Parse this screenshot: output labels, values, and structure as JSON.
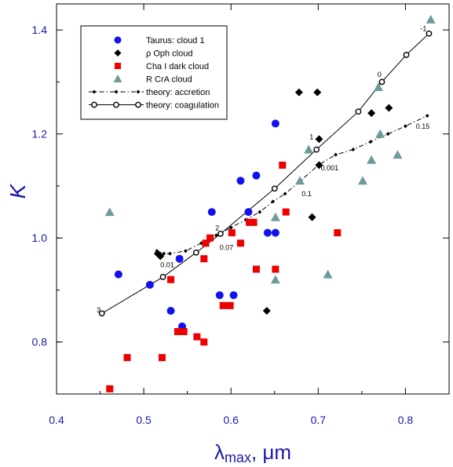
{
  "chart_data": {
    "type": "scatter",
    "title": "",
    "xlabel": "λmax, μm",
    "xlabel_main": "λ",
    "xlabel_sub": "max",
    "xlabel_unit": ", μm",
    "ylabel": "K",
    "xlim": [
      0.4,
      0.85
    ],
    "ylim": [
      0.7,
      1.45
    ],
    "xticks": [
      "0.4",
      "0.5",
      "0.6",
      "0.7",
      "0.8"
    ],
    "yticks": [
      "0.8",
      "1.0",
      "1.2",
      "1.4"
    ],
    "grid": false,
    "legend_position": "top-left",
    "series": [
      {
        "name": "Taurus: cloud 1",
        "marker": "circle",
        "color": "#1212ee",
        "points": [
          [
            0.471,
            0.93
          ],
          [
            0.507,
            0.91
          ],
          [
            0.531,
            0.86
          ],
          [
            0.541,
            0.96
          ],
          [
            0.544,
            0.83
          ],
          [
            0.578,
            1.05
          ],
          [
            0.587,
            0.89
          ],
          [
            0.603,
            0.89
          ],
          [
            0.611,
            1.11
          ],
          [
            0.62,
            1.05
          ],
          [
            0.629,
            1.12
          ],
          [
            0.642,
            1.01
          ],
          [
            0.651,
            1.01
          ],
          [
            0.651,
            1.22
          ]
        ]
      },
      {
        "name": "ρ Oph cloud",
        "marker": "diamond",
        "color": "#000000",
        "points": [
          [
            0.516,
            0.97
          ],
          [
            0.519,
            0.965
          ],
          [
            0.641,
            0.86
          ],
          [
            0.678,
            1.28
          ],
          [
            0.693,
            1.04
          ],
          [
            0.699,
            1.28
          ],
          [
            0.701,
            1.14
          ],
          [
            0.701,
            1.19
          ],
          [
            0.761,
            1.24
          ],
          [
            0.781,
            1.25
          ]
        ]
      },
      {
        "name": "Cha I dark cloud",
        "marker": "square",
        "color": "#ee0000",
        "points": [
          [
            0.461,
            0.71
          ],
          [
            0.481,
            0.77
          ],
          [
            0.521,
            0.77
          ],
          [
            0.531,
            0.92
          ],
          [
            0.539,
            0.82
          ],
          [
            0.546,
            0.82
          ],
          [
            0.561,
            0.81
          ],
          [
            0.569,
            0.8
          ],
          [
            0.569,
            0.96
          ],
          [
            0.571,
            0.99
          ],
          [
            0.576,
            1.0
          ],
          [
            0.591,
            0.87
          ],
          [
            0.599,
            0.87
          ],
          [
            0.601,
            1.01
          ],
          [
            0.611,
            0.99
          ],
          [
            0.621,
            1.03
          ],
          [
            0.626,
            1.03
          ],
          [
            0.629,
            0.94
          ],
          [
            0.651,
            0.94
          ],
          [
            0.659,
            1.14
          ],
          [
            0.663,
            1.05
          ],
          [
            0.722,
            1.01
          ]
        ]
      },
      {
        "name": "R CrA cloud",
        "marker": "triangle",
        "color": "#6e9a9a",
        "points": [
          [
            0.461,
            1.05
          ],
          [
            0.651,
            0.92
          ],
          [
            0.651,
            1.04
          ],
          [
            0.679,
            1.11
          ],
          [
            0.689,
            1.17
          ],
          [
            0.711,
            0.93
          ],
          [
            0.751,
            1.11
          ],
          [
            0.761,
            1.15
          ],
          [
            0.769,
            1.29
          ],
          [
            0.771,
            1.2
          ],
          [
            0.791,
            1.16
          ],
          [
            0.829,
            1.42
          ]
        ]
      }
    ],
    "theory": [
      {
        "name": "theory: accretion",
        "style": "dash-dot",
        "marker": "small-diamond",
        "points": [
          [
            0.515,
            0.975
          ],
          [
            0.523,
            0.97
          ],
          [
            0.53,
            0.97
          ],
          [
            0.548,
            0.975
          ],
          [
            0.566,
            0.99
          ],
          [
            0.583,
            1.005
          ],
          [
            0.6,
            1.02
          ],
          [
            0.617,
            1.035
          ],
          [
            0.633,
            1.05
          ],
          [
            0.648,
            1.07
          ],
          [
            0.662,
            1.085
          ],
          [
            0.68,
            1.11
          ],
          [
            0.7,
            1.14
          ],
          [
            0.72,
            1.16
          ],
          [
            0.74,
            1.17
          ],
          [
            0.76,
            1.185
          ],
          [
            0.78,
            1.2
          ],
          [
            0.8,
            1.215
          ],
          [
            0.825,
            1.235
          ]
        ]
      },
      {
        "name": "theory: coagulation",
        "style": "solid",
        "marker": "open-circle",
        "points": [
          [
            0.452,
            0.855
          ],
          [
            0.522,
            0.925
          ],
          [
            0.56,
            0.972
          ],
          [
            0.588,
            1.008
          ],
          [
            0.65,
            1.095
          ],
          [
            0.698,
            1.17
          ],
          [
            0.746,
            1.243
          ],
          [
            0.773,
            1.3
          ],
          [
            0.801,
            1.352
          ],
          [
            0.827,
            1.393
          ]
        ]
      }
    ],
    "annotations": [
      {
        "text": "3",
        "x": 0.446,
        "y": 0.857
      },
      {
        "text": "0.01",
        "x": 0.519,
        "y": 0.944
      },
      {
        "text": "2",
        "x": 0.582,
        "y": 1.015
      },
      {
        "text": "0.07",
        "x": 0.587,
        "y": 0.977
      },
      {
        "text": "0.1",
        "x": 0.681,
        "y": 1.08
      },
      {
        "text": "0.001",
        "x": 0.703,
        "y": 1.13
      },
      {
        "text": "1",
        "x": 0.69,
        "y": 1.19
      },
      {
        "text": "0",
        "x": 0.768,
        "y": 1.31
      },
      {
        "text": "0.15",
        "x": 0.812,
        "y": 1.21
      },
      {
        "text": "-1",
        "x": 0.817,
        "y": 1.398
      }
    ]
  }
}
